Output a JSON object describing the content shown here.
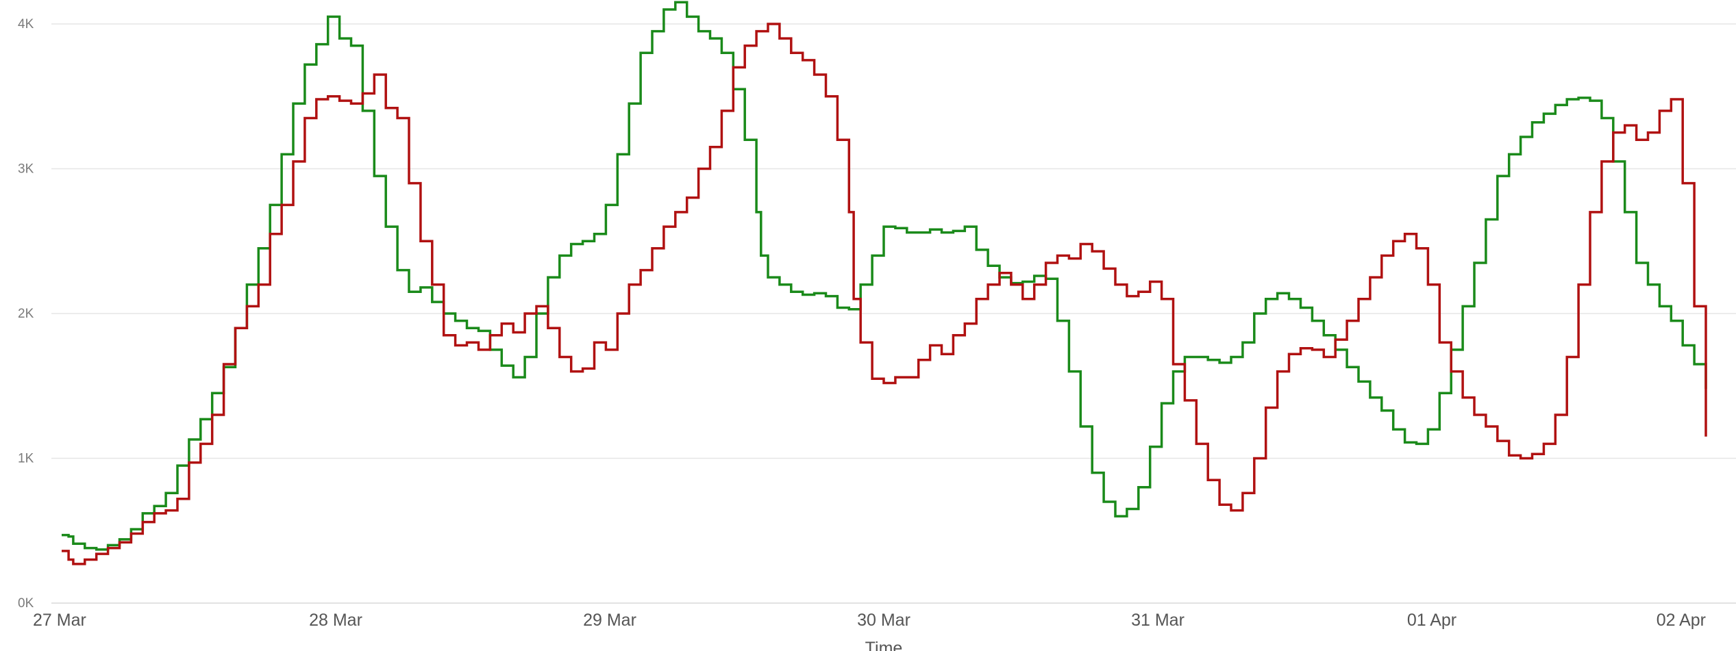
{
  "chart_data": {
    "type": "line",
    "xlabel": "Time",
    "ylabel": "",
    "ylim": [
      0,
      4000
    ],
    "xlim": [
      "27 Mar",
      "02 Apr"
    ],
    "grid": true,
    "legend": "none",
    "step": true,
    "yticks": [
      {
        "value": 0,
        "label": "0K"
      },
      {
        "value": 1000,
        "label": "1K"
      },
      {
        "value": 2000,
        "label": "2K"
      },
      {
        "value": 3000,
        "label": "3K"
      },
      {
        "value": 4000,
        "label": "4K"
      }
    ],
    "xticks": [
      {
        "value": 0,
        "label": "27 Mar"
      },
      {
        "value": 1,
        "label": "28 Mar"
      },
      {
        "value": 2,
        "label": "29 Mar"
      },
      {
        "value": 3,
        "label": "30 Mar"
      },
      {
        "value": 4,
        "label": "31 Mar"
      },
      {
        "value": 5,
        "label": "01 Apr"
      },
      {
        "value": 6,
        "label": "02 Apr"
      }
    ],
    "series": [
      {
        "color": "#1a8a1a",
        "points": [
          [
            0.0,
            470
          ],
          [
            0.03,
            460
          ],
          [
            0.05,
            410
          ],
          [
            0.1,
            380
          ],
          [
            0.15,
            370
          ],
          [
            0.2,
            400
          ],
          [
            0.25,
            440
          ],
          [
            0.3,
            510
          ],
          [
            0.35,
            620
          ],
          [
            0.4,
            670
          ],
          [
            0.45,
            760
          ],
          [
            0.5,
            950
          ],
          [
            0.55,
            1130
          ],
          [
            0.6,
            1270
          ],
          [
            0.65,
            1450
          ],
          [
            0.7,
            1630
          ],
          [
            0.75,
            1900
          ],
          [
            0.8,
            2200
          ],
          [
            0.85,
            2450
          ],
          [
            0.9,
            2750
          ],
          [
            0.95,
            3100
          ],
          [
            1.0,
            3450
          ],
          [
            1.05,
            3720
          ],
          [
            1.1,
            3860
          ],
          [
            1.15,
            4050
          ],
          [
            1.2,
            3900
          ],
          [
            1.25,
            3850
          ],
          [
            1.3,
            3400
          ],
          [
            1.35,
            2950
          ],
          [
            1.4,
            2600
          ],
          [
            1.45,
            2300
          ],
          [
            1.5,
            2150
          ],
          [
            1.55,
            2180
          ],
          [
            1.6,
            2080
          ],
          [
            1.65,
            2000
          ],
          [
            1.7,
            1950
          ],
          [
            1.75,
            1900
          ],
          [
            1.8,
            1880
          ],
          [
            1.85,
            1750
          ],
          [
            1.9,
            1640
          ],
          [
            1.95,
            1560
          ],
          [
            2.0,
            1700
          ],
          [
            2.05,
            2000
          ],
          [
            2.1,
            2250
          ],
          [
            2.15,
            2400
          ],
          [
            2.2,
            2480
          ],
          [
            2.25,
            2500
          ],
          [
            2.3,
            2550
          ],
          [
            2.35,
            2750
          ],
          [
            2.4,
            3100
          ],
          [
            2.45,
            3450
          ],
          [
            2.5,
            3800
          ],
          [
            2.55,
            3950
          ],
          [
            2.6,
            4100
          ],
          [
            2.65,
            4150
          ],
          [
            2.7,
            4050
          ],
          [
            2.75,
            3950
          ],
          [
            2.8,
            3900
          ],
          [
            2.85,
            3800
          ],
          [
            2.9,
            3550
          ],
          [
            2.95,
            3200
          ],
          [
            3.0,
            2700
          ],
          [
            3.02,
            2400
          ],
          [
            3.05,
            2250
          ],
          [
            3.1,
            2200
          ],
          [
            3.15,
            2150
          ],
          [
            3.2,
            2130
          ],
          [
            3.25,
            2140
          ],
          [
            3.3,
            2120
          ],
          [
            3.35,
            2040
          ],
          [
            3.4,
            2030
          ],
          [
            3.45,
            2200
          ],
          [
            3.5,
            2400
          ],
          [
            3.55,
            2600
          ],
          [
            3.6,
            2590
          ],
          [
            3.65,
            2560
          ],
          [
            3.7,
            2560
          ],
          [
            3.75,
            2580
          ],
          [
            3.8,
            2560
          ],
          [
            3.85,
            2570
          ],
          [
            3.9,
            2600
          ],
          [
            3.95,
            2440
          ],
          [
            4.0,
            2330
          ],
          [
            4.05,
            2250
          ],
          [
            4.1,
            2210
          ],
          [
            4.15,
            2220
          ],
          [
            4.2,
            2260
          ],
          [
            4.25,
            2240
          ],
          [
            4.3,
            1950
          ],
          [
            4.35,
            1600
          ],
          [
            4.4,
            1220
          ],
          [
            4.45,
            900
          ],
          [
            4.5,
            700
          ],
          [
            4.55,
            600
          ],
          [
            4.6,
            650
          ],
          [
            4.65,
            800
          ],
          [
            4.7,
            1080
          ],
          [
            4.75,
            1380
          ],
          [
            4.8,
            1600
          ],
          [
            4.85,
            1700
          ],
          [
            4.9,
            1700
          ],
          [
            4.95,
            1680
          ],
          [
            5.0,
            1660
          ],
          [
            5.05,
            1700
          ],
          [
            5.1,
            1800
          ],
          [
            5.15,
            2000
          ],
          [
            5.2,
            2100
          ],
          [
            5.25,
            2140
          ],
          [
            5.3,
            2100
          ],
          [
            5.35,
            2040
          ],
          [
            5.4,
            1950
          ],
          [
            5.45,
            1850
          ],
          [
            5.5,
            1750
          ],
          [
            5.55,
            1630
          ],
          [
            5.6,
            1530
          ],
          [
            5.65,
            1420
          ],
          [
            5.7,
            1330
          ],
          [
            5.75,
            1200
          ],
          [
            5.8,
            1110
          ],
          [
            5.85,
            1100
          ],
          [
            5.9,
            1200
          ],
          [
            5.95,
            1450
          ],
          [
            6.0,
            1750
          ],
          [
            6.05,
            2050
          ],
          [
            6.1,
            2350
          ],
          [
            6.15,
            2650
          ],
          [
            6.2,
            2950
          ],
          [
            6.25,
            3100
          ],
          [
            6.3,
            3220
          ],
          [
            6.35,
            3320
          ],
          [
            6.4,
            3380
          ],
          [
            6.45,
            3440
          ],
          [
            6.5,
            3480
          ],
          [
            6.55,
            3490
          ],
          [
            6.6,
            3470
          ],
          [
            6.65,
            3350
          ],
          [
            6.7,
            3050
          ],
          [
            6.75,
            2700
          ],
          [
            6.8,
            2350
          ],
          [
            6.85,
            2200
          ],
          [
            6.9,
            2050
          ],
          [
            6.95,
            1950
          ],
          [
            7.0,
            1780
          ],
          [
            7.05,
            1650
          ],
          [
            7.1,
            1480
          ]
        ]
      },
      {
        "color": "#b01111",
        "points": [
          [
            0.0,
            360
          ],
          [
            0.03,
            300
          ],
          [
            0.05,
            270
          ],
          [
            0.1,
            300
          ],
          [
            0.15,
            340
          ],
          [
            0.2,
            380
          ],
          [
            0.25,
            420
          ],
          [
            0.3,
            480
          ],
          [
            0.35,
            560
          ],
          [
            0.4,
            620
          ],
          [
            0.45,
            640
          ],
          [
            0.5,
            720
          ],
          [
            0.55,
            970
          ],
          [
            0.6,
            1100
          ],
          [
            0.65,
            1300
          ],
          [
            0.7,
            1650
          ],
          [
            0.75,
            1900
          ],
          [
            0.8,
            2050
          ],
          [
            0.85,
            2200
          ],
          [
            0.9,
            2550
          ],
          [
            0.95,
            2750
          ],
          [
            1.0,
            3050
          ],
          [
            1.05,
            3350
          ],
          [
            1.1,
            3480
          ],
          [
            1.15,
            3500
          ],
          [
            1.2,
            3470
          ],
          [
            1.25,
            3450
          ],
          [
            1.3,
            3520
          ],
          [
            1.35,
            3650
          ],
          [
            1.4,
            3420
          ],
          [
            1.45,
            3350
          ],
          [
            1.5,
            2900
          ],
          [
            1.55,
            2500
          ],
          [
            1.6,
            2200
          ],
          [
            1.65,
            1850
          ],
          [
            1.7,
            1780
          ],
          [
            1.75,
            1800
          ],
          [
            1.8,
            1750
          ],
          [
            1.85,
            1850
          ],
          [
            1.9,
            1930
          ],
          [
            1.95,
            1870
          ],
          [
            2.0,
            2000
          ],
          [
            2.05,
            2050
          ],
          [
            2.1,
            1900
          ],
          [
            2.15,
            1700
          ],
          [
            2.2,
            1600
          ],
          [
            2.25,
            1620
          ],
          [
            2.3,
            1800
          ],
          [
            2.35,
            1750
          ],
          [
            2.4,
            2000
          ],
          [
            2.45,
            2200
          ],
          [
            2.5,
            2300
          ],
          [
            2.55,
            2450
          ],
          [
            2.6,
            2600
          ],
          [
            2.65,
            2700
          ],
          [
            2.7,
            2800
          ],
          [
            2.75,
            3000
          ],
          [
            2.8,
            3150
          ],
          [
            2.85,
            3400
          ],
          [
            2.9,
            3700
          ],
          [
            2.95,
            3850
          ],
          [
            3.0,
            3950
          ],
          [
            3.05,
            4000
          ],
          [
            3.1,
            3900
          ],
          [
            3.15,
            3800
          ],
          [
            3.2,
            3750
          ],
          [
            3.25,
            3650
          ],
          [
            3.3,
            3500
          ],
          [
            3.35,
            3200
          ],
          [
            3.4,
            2700
          ],
          [
            3.42,
            2100
          ],
          [
            3.45,
            1800
          ],
          [
            3.5,
            1550
          ],
          [
            3.55,
            1520
          ],
          [
            3.6,
            1560
          ],
          [
            3.65,
            1560
          ],
          [
            3.7,
            1680
          ],
          [
            3.75,
            1780
          ],
          [
            3.8,
            1720
          ],
          [
            3.85,
            1850
          ],
          [
            3.9,
            1930
          ],
          [
            3.95,
            2100
          ],
          [
            4.0,
            2200
          ],
          [
            4.05,
            2280
          ],
          [
            4.1,
            2200
          ],
          [
            4.15,
            2100
          ],
          [
            4.2,
            2200
          ],
          [
            4.25,
            2350
          ],
          [
            4.3,
            2400
          ],
          [
            4.35,
            2380
          ],
          [
            4.4,
            2480
          ],
          [
            4.45,
            2430
          ],
          [
            4.5,
            2310
          ],
          [
            4.55,
            2200
          ],
          [
            4.6,
            2120
          ],
          [
            4.65,
            2150
          ],
          [
            4.7,
            2220
          ],
          [
            4.75,
            2100
          ],
          [
            4.8,
            1650
          ],
          [
            4.85,
            1400
          ],
          [
            4.9,
            1100
          ],
          [
            4.95,
            850
          ],
          [
            5.0,
            680
          ],
          [
            5.05,
            640
          ],
          [
            5.1,
            760
          ],
          [
            5.15,
            1000
          ],
          [
            5.2,
            1350
          ],
          [
            5.25,
            1600
          ],
          [
            5.3,
            1720
          ],
          [
            5.35,
            1760
          ],
          [
            5.4,
            1750
          ],
          [
            5.45,
            1700
          ],
          [
            5.5,
            1820
          ],
          [
            5.55,
            1950
          ],
          [
            5.6,
            2100
          ],
          [
            5.65,
            2250
          ],
          [
            5.7,
            2400
          ],
          [
            5.75,
            2500
          ],
          [
            5.8,
            2550
          ],
          [
            5.85,
            2450
          ],
          [
            5.9,
            2200
          ],
          [
            5.95,
            1800
          ],
          [
            6.0,
            1600
          ],
          [
            6.05,
            1420
          ],
          [
            6.1,
            1300
          ],
          [
            6.15,
            1220
          ],
          [
            6.2,
            1120
          ],
          [
            6.25,
            1020
          ],
          [
            6.3,
            1000
          ],
          [
            6.35,
            1030
          ],
          [
            6.4,
            1100
          ],
          [
            6.45,
            1300
          ],
          [
            6.5,
            1700
          ],
          [
            6.55,
            2200
          ],
          [
            6.6,
            2700
          ],
          [
            6.65,
            3050
          ],
          [
            6.7,
            3250
          ],
          [
            6.75,
            3300
          ],
          [
            6.8,
            3200
          ],
          [
            6.85,
            3250
          ],
          [
            6.9,
            3400
          ],
          [
            6.95,
            3480
          ],
          [
            7.0,
            2900
          ],
          [
            7.05,
            2050
          ],
          [
            7.1,
            1150
          ]
        ]
      }
    ]
  }
}
